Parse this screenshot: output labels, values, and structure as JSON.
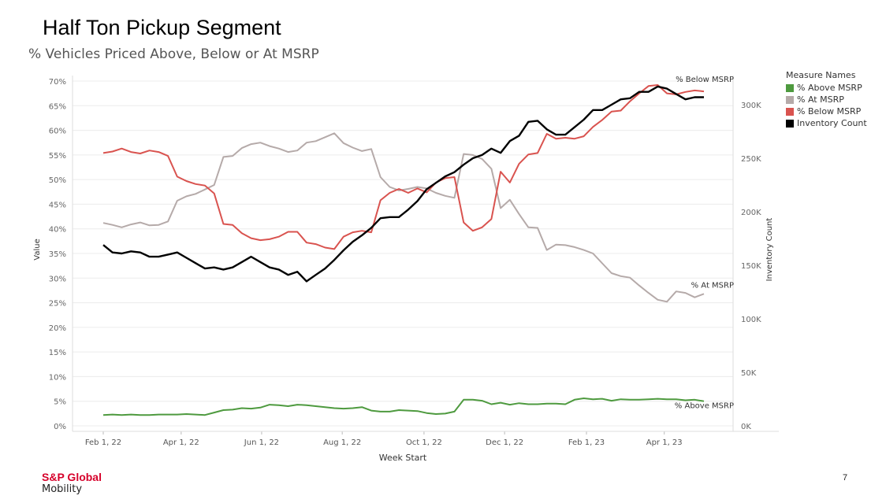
{
  "header": {
    "title": "Half Ton Pickup Segment",
    "subtitle": "% Vehicles Priced Above, Below or At MSRP"
  },
  "legend": {
    "title": "Measure Names",
    "items": [
      {
        "label": "% Above MSRP",
        "color": "#4e9a3f"
      },
      {
        "label": "% At MSRP",
        "color": "#b5aaa9"
      },
      {
        "label": "% Below MSRP",
        "color": "#d9534f"
      },
      {
        "label": "Inventory Count",
        "color": "#000000"
      }
    ]
  },
  "footer": {
    "logo_top": "S&P Global",
    "logo_bottom": "Mobility",
    "page_number": "7"
  },
  "chart_data": {
    "type": "line",
    "xlabel": "Week Start",
    "ylabel": "Value",
    "y2label": "Inventory Count",
    "ylim": [
      0,
      72
    ],
    "y2lim": [
      0,
      330000
    ],
    "y_ticks": [
      "0%",
      "5%",
      "10%",
      "15%",
      "20%",
      "25%",
      "30%",
      "35%",
      "40%",
      "45%",
      "50%",
      "55%",
      "60%",
      "65%",
      "70%"
    ],
    "y2_ticks": [
      "0K",
      "50K",
      "100K",
      "150K",
      "200K",
      "250K",
      "300K"
    ],
    "x_ticks": [
      "Feb 1, 22",
      "Apr 1, 22",
      "Jun 1, 22",
      "Aug 1, 22",
      "Oct 1, 22",
      "Dec 1, 22",
      "Feb 1, 23",
      "Apr 1, 23"
    ],
    "week_count": 66,
    "series": [
      {
        "name": "% Above MSRP",
        "color": "#4e9a3f",
        "axis": "left",
        "end_label": "% Above MSRP",
        "values": [
          2.2,
          2.3,
          2.2,
          2.3,
          2.2,
          2.2,
          2.3,
          2.3,
          2.3,
          2.4,
          2.3,
          2.2,
          2.7,
          3.2,
          3.3,
          3.6,
          3.5,
          3.7,
          4.3,
          4.2,
          4.0,
          4.3,
          4.2,
          4.0,
          3.8,
          3.6,
          3.5,
          3.6,
          3.8,
          3.1,
          2.9,
          2.9,
          3.2,
          3.1,
          3.0,
          2.6,
          2.4,
          2.5,
          2.9,
          5.3,
          5.3,
          5.1,
          4.4,
          4.7,
          4.3,
          4.6,
          4.4,
          4.4,
          4.5,
          4.5,
          4.4,
          5.3,
          5.6,
          5.4,
          5.5,
          5.1,
          5.4,
          5.3,
          5.3,
          5.4,
          5.5,
          5.4,
          5.4,
          5.2,
          5.3,
          5.0
        ]
      },
      {
        "name": "% At MSRP",
        "color": "#b5aaa9",
        "axis": "left",
        "end_label": "% At MSRP",
        "values": [
          41.2,
          40.8,
          40.3,
          40.9,
          41.3,
          40.7,
          40.8,
          41.5,
          45.7,
          46.6,
          47.1,
          48.0,
          48.9,
          54.6,
          54.8,
          56.4,
          57.2,
          57.5,
          56.8,
          56.3,
          55.6,
          55.9,
          57.5,
          57.8,
          58.6,
          59.4,
          57.4,
          56.5,
          55.8,
          56.2,
          50.5,
          48.5,
          47.8,
          48.1,
          48.5,
          48.2,
          47.3,
          46.7,
          46.3,
          55.2,
          55.0,
          54.2,
          52.2,
          44.2,
          45.9,
          43.0,
          40.3,
          40.2,
          35.7,
          36.8,
          36.7,
          36.3,
          35.7,
          35.0,
          33.0,
          31.0,
          30.4,
          30.1,
          28.5,
          27.0,
          25.6,
          25.2,
          27.3,
          27.0,
          26.1,
          26.8
        ]
      },
      {
        "name": "% Below MSRP",
        "color": "#d9534f",
        "axis": "left",
        "end_label": "% Below MSRP",
        "values": [
          55.4,
          55.7,
          56.3,
          55.6,
          55.3,
          55.9,
          55.6,
          54.8,
          50.6,
          49.7,
          49.1,
          48.8,
          47.2,
          41.0,
          40.8,
          39.1,
          38.1,
          37.7,
          37.9,
          38.4,
          39.4,
          39.4,
          37.2,
          36.9,
          36.2,
          35.9,
          38.4,
          39.3,
          39.6,
          39.3,
          45.8,
          47.3,
          48.1,
          47.3,
          48.2,
          47.4,
          49.4,
          50.3,
          50.5,
          41.3,
          39.6,
          40.3,
          42.0,
          51.6,
          49.4,
          53.2,
          55.1,
          55.4,
          59.3,
          58.3,
          58.5,
          58.3,
          58.8,
          60.7,
          62.1,
          63.8,
          64.0,
          65.9,
          67.5,
          69.0,
          69.2,
          67.5,
          67.3,
          67.8,
          68.1,
          67.9
        ]
      },
      {
        "name": "Inventory Count",
        "color": "#000000",
        "axis": "right",
        "values": [
          169000,
          162000,
          161000,
          163000,
          162000,
          158000,
          158000,
          160000,
          162000,
          157000,
          152000,
          147000,
          148000,
          146000,
          148000,
          153000,
          158000,
          153000,
          148000,
          146000,
          141000,
          144000,
          135000,
          141000,
          147000,
          155000,
          164000,
          172000,
          178000,
          185000,
          194000,
          195000,
          195000,
          202000,
          210000,
          221000,
          227000,
          233000,
          237000,
          244000,
          250000,
          253000,
          259000,
          255000,
          266000,
          271000,
          284000,
          285000,
          277000,
          272000,
          272000,
          279000,
          286000,
          295000,
          295000,
          300000,
          305000,
          306000,
          312000,
          312000,
          317000,
          315000,
          310000,
          305000,
          307000,
          307000
        ]
      }
    ]
  }
}
